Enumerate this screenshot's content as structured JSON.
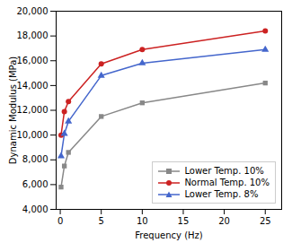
{
  "chart_data": {
    "type": "line",
    "xlabel": "Frequency (Hz)",
    "ylabel": "Dynamic Modulus (MPa)",
    "x": [
      0.1,
      0.5,
      1,
      5,
      10,
      25
    ],
    "series": [
      {
        "name": "Lower Temp. 10%",
        "color": "#888888",
        "marker": "square",
        "values": [
          5800,
          7500,
          8600,
          11500,
          12600,
          14200
        ]
      },
      {
        "name": "Normal Temp. 10%",
        "color": "#cc2222",
        "marker": "circle",
        "values": [
          10000,
          11900,
          12700,
          15750,
          16900,
          18400
        ]
      },
      {
        "name": "Lower Temp. 8%",
        "color": "#4466cc",
        "marker": "triangle",
        "values": [
          8300,
          10100,
          11100,
          14800,
          15800,
          16900
        ]
      }
    ],
    "xlim": [
      -0.5,
      27
    ],
    "ylim": [
      4000,
      20000
    ],
    "xticks": [
      0,
      5,
      10,
      15,
      20,
      25
    ],
    "yticks": [
      {
        "value": 4000,
        "label": "4,000"
      },
      {
        "value": 6000,
        "label": "6,000"
      },
      {
        "value": 8000,
        "label": "8,000"
      },
      {
        "value": 10000,
        "label": "10,000"
      },
      {
        "value": 12000,
        "label": "12,000"
      },
      {
        "value": 14000,
        "label": "14,000"
      },
      {
        "value": 16000,
        "label": "16,000"
      },
      {
        "value": 18000,
        "label": "18,000"
      },
      {
        "value": 20000,
        "label": "20,000"
      }
    ],
    "grid": false,
    "legend": "lower right"
  }
}
